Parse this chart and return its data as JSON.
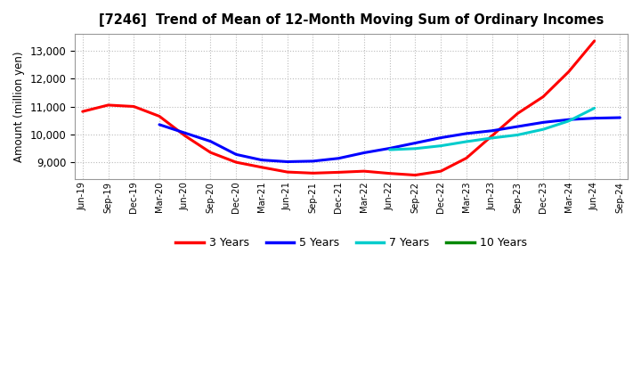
{
  "title": "[7246]  Trend of Mean of 12-Month Moving Sum of Ordinary Incomes",
  "ylabel": "Amount (million yen)",
  "background_color": "#ffffff",
  "plot_bg_color": "#ffffff",
  "grid_color": "#bbbbbb",
  "ylim": [
    8400,
    13600
  ],
  "yticks": [
    9000,
    10000,
    11000,
    12000,
    13000
  ],
  "x_labels": [
    "Jun-19",
    "Sep-19",
    "Dec-19",
    "Mar-20",
    "Jun-20",
    "Sep-20",
    "Dec-20",
    "Mar-21",
    "Jun-21",
    "Sep-21",
    "Dec-21",
    "Mar-22",
    "Jun-22",
    "Sep-22",
    "Dec-22",
    "Mar-23",
    "Jun-23",
    "Sep-23",
    "Dec-23",
    "Mar-24",
    "Jun-24",
    "Sep-24"
  ],
  "series": {
    "3 Years": {
      "color": "#ff0000",
      "values": [
        10820,
        11050,
        11000,
        10650,
        9950,
        9350,
        9000,
        8820,
        8650,
        8610,
        8640,
        8680,
        8600,
        8540,
        8680,
        9150,
        9950,
        10750,
        11350,
        12250,
        13350,
        null
      ]
    },
    "5 Years": {
      "color": "#0000ff",
      "values": [
        null,
        null,
        null,
        10350,
        10050,
        9750,
        9280,
        9080,
        9020,
        9040,
        9140,
        9340,
        9500,
        9690,
        9880,
        10030,
        10130,
        10280,
        10430,
        10530,
        10580,
        10600
      ]
    },
    "7 Years": {
      "color": "#00cccc",
      "values": [
        null,
        null,
        null,
        null,
        null,
        null,
        null,
        null,
        null,
        null,
        null,
        null,
        9450,
        9490,
        9590,
        9740,
        9870,
        9980,
        10180,
        10480,
        10940,
        null
      ]
    },
    "10 Years": {
      "color": "#008800",
      "values": [
        null,
        null,
        null,
        null,
        null,
        null,
        null,
        null,
        null,
        null,
        null,
        null,
        null,
        null,
        null,
        null,
        null,
        null,
        null,
        null,
        null,
        null
      ]
    }
  },
  "legend_labels": [
    "3 Years",
    "5 Years",
    "7 Years",
    "10 Years"
  ],
  "legend_colors": [
    "#ff0000",
    "#0000ff",
    "#00cccc",
    "#008800"
  ]
}
